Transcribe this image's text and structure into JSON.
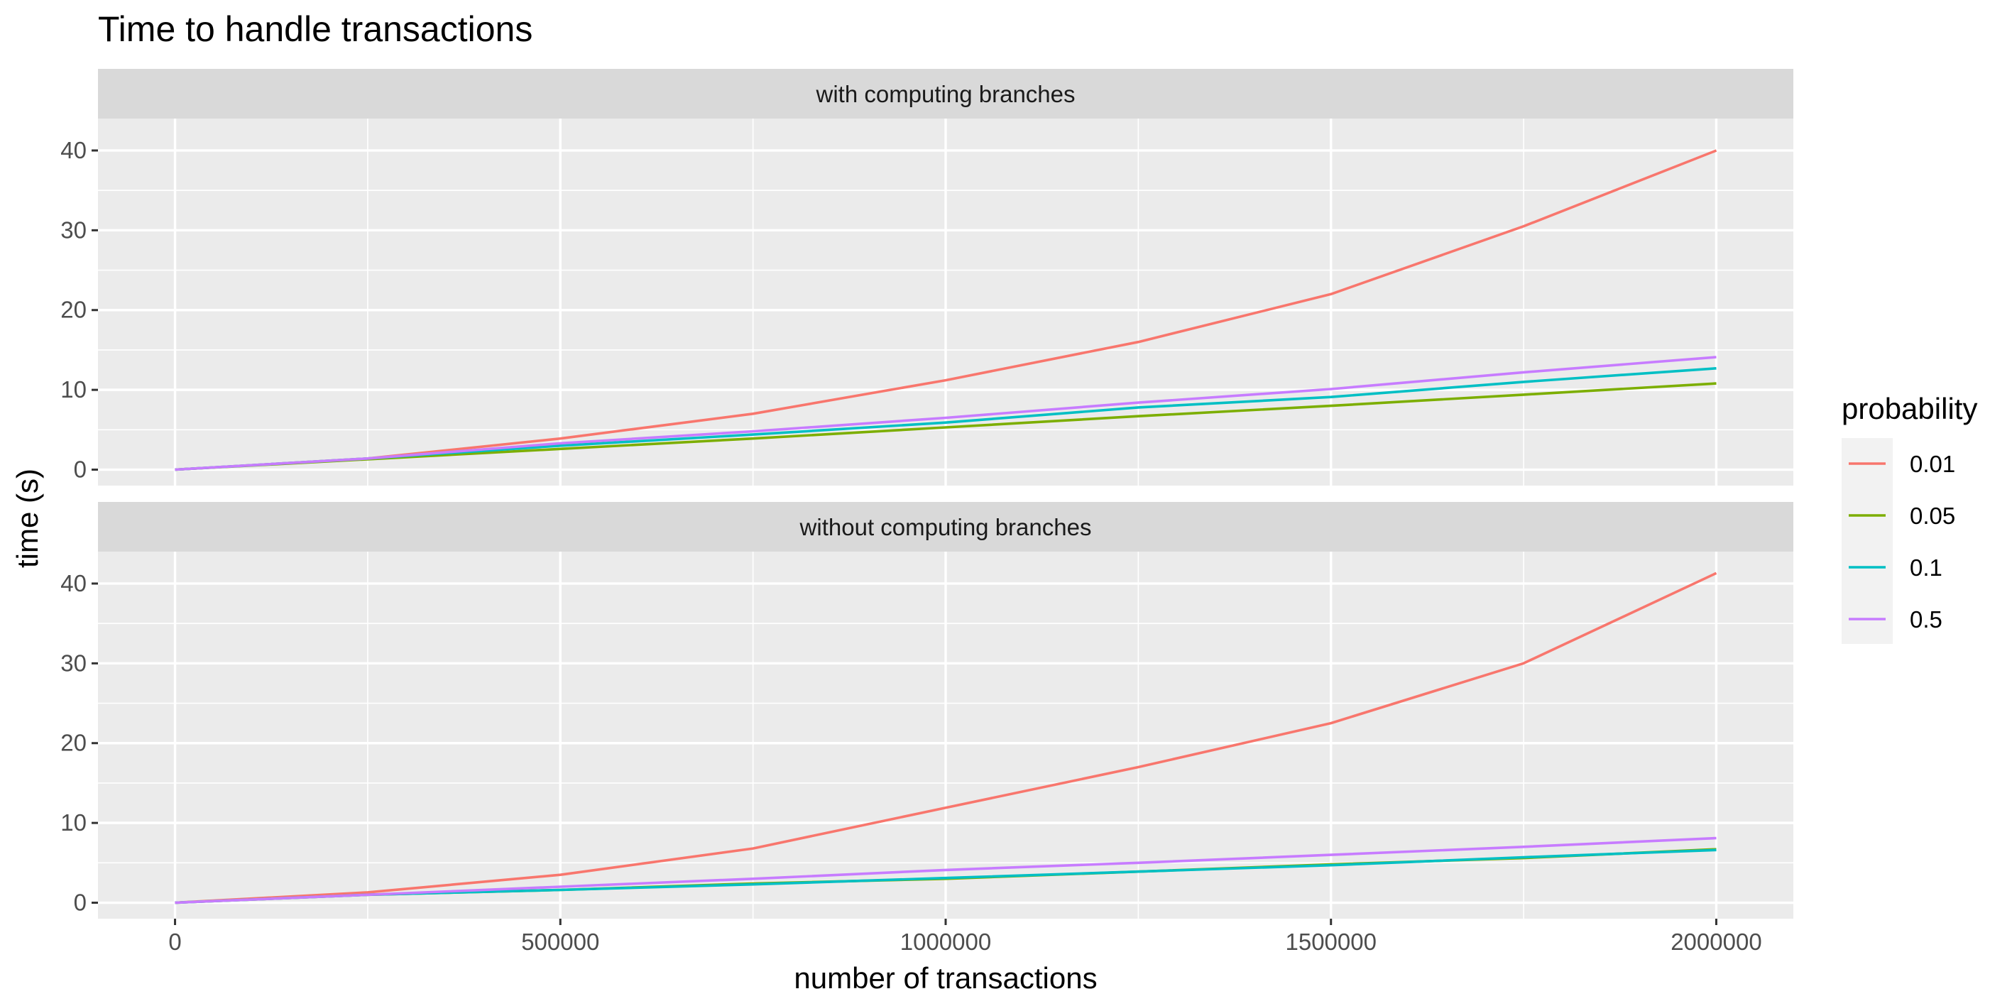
{
  "chart_data": {
    "type": "line",
    "title": "Time to handle transactions",
    "xlabel": "number of transactions",
    "ylabel": "time (s)",
    "xlim": [
      -100000,
      2100000
    ],
    "ylim": [
      -2,
      44
    ],
    "x_ticks": [
      0,
      500000,
      1000000,
      1500000,
      2000000
    ],
    "x_tick_labels": [
      "0",
      "500000",
      "1000000",
      "1500000",
      "2000000"
    ],
    "y_ticks": [
      0,
      10,
      20,
      30,
      40
    ],
    "y_tick_labels": [
      "0",
      "10",
      "20",
      "30",
      "40"
    ],
    "grid": true,
    "legend": {
      "title": "probability",
      "position": "right",
      "entries": [
        {
          "label": "0.01",
          "color": "#F8766D"
        },
        {
          "label": "0.05",
          "color": "#7CAE00"
        },
        {
          "label": "0.1",
          "color": "#00BFC4"
        },
        {
          "label": "0.5",
          "color": "#C77CFF"
        }
      ]
    },
    "x": [
      0,
      250000,
      500000,
      750000,
      1000000,
      1250000,
      1500000,
      1750000,
      2000000
    ],
    "panels": [
      {
        "title": "with computing branches",
        "series": [
          {
            "name": "0.01",
            "color": "#F8766D",
            "values": [
              0,
              1.4,
              3.9,
              7.0,
              11.2,
              16.0,
              22.0,
              30.5,
              40.0
            ]
          },
          {
            "name": "0.05",
            "color": "#7CAE00",
            "values": [
              0,
              1.3,
              2.6,
              3.9,
              5.3,
              6.7,
              8.0,
              9.4,
              10.8
            ]
          },
          {
            "name": "0.1",
            "color": "#00BFC4",
            "values": [
              0,
              1.4,
              3.0,
              4.4,
              5.9,
              7.8,
              9.1,
              11.0,
              12.7
            ]
          },
          {
            "name": "0.5",
            "color": "#C77CFF",
            "values": [
              0,
              1.4,
              3.3,
              4.8,
              6.5,
              8.4,
              10.1,
              12.2,
              14.1
            ]
          }
        ]
      },
      {
        "title": "without computing branches",
        "series": [
          {
            "name": "0.01",
            "color": "#F8766D",
            "values": [
              0,
              1.3,
              3.5,
              6.8,
              11.9,
              17.0,
              22.5,
              30.0,
              41.3
            ]
          },
          {
            "name": "0.05",
            "color": "#7CAE00",
            "values": [
              0,
              1.0,
              1.6,
              2.4,
              3.0,
              3.9,
              4.8,
              5.6,
              6.7
            ]
          },
          {
            "name": "0.1",
            "color": "#00BFC4",
            "values": [
              0,
              1.0,
              1.6,
              2.3,
              3.1,
              3.9,
              4.7,
              5.7,
              6.6
            ]
          },
          {
            "name": "0.5",
            "color": "#C77CFF",
            "values": [
              0,
              1.0,
              2.0,
              3.0,
              4.1,
              5.0,
              6.0,
              7.0,
              8.1
            ]
          }
        ]
      }
    ]
  }
}
